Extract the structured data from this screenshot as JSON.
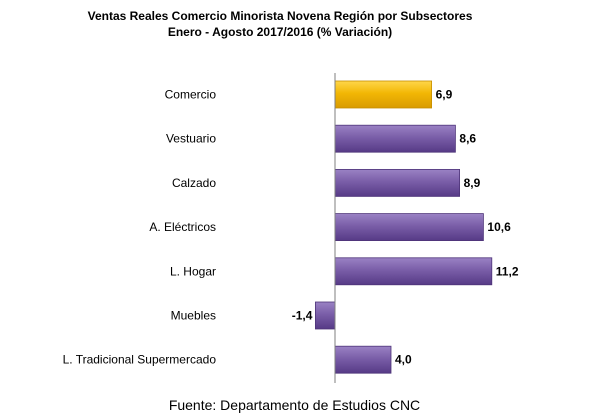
{
  "chart_data": {
    "type": "bar",
    "orientation": "horizontal",
    "title": "Ventas Reales Comercio Minorista Novena Región por Subsectores",
    "subtitle": "Enero -  Agosto  2017/2016 (% Variación)",
    "categories": [
      "Comercio",
      "Vestuario",
      "Calzado",
      "A. Eléctricos",
      "L. Hogar",
      "Muebles",
      "L. Tradicional Supermercado"
    ],
    "values": [
      6.9,
      8.6,
      8.9,
      10.6,
      11.2,
      -1.4,
      4.0
    ],
    "data_labels": [
      "6,9",
      "8,6",
      "8,9",
      "10,6",
      "11,2",
      "-1,4",
      "4,0"
    ],
    "xlim": [
      -1.4,
      11.2
    ],
    "grid": false,
    "legend": "none",
    "colors": {
      "highlight": "#f2b705",
      "highlight_dark": "#c68e00",
      "bar": "#7a5ea8",
      "bar_dark": "#4e3479",
      "axis": "#7f7f7f"
    },
    "highlight_index": 0
  },
  "footer": {
    "source": "Fuente: Departamento de Estudios CNC"
  }
}
